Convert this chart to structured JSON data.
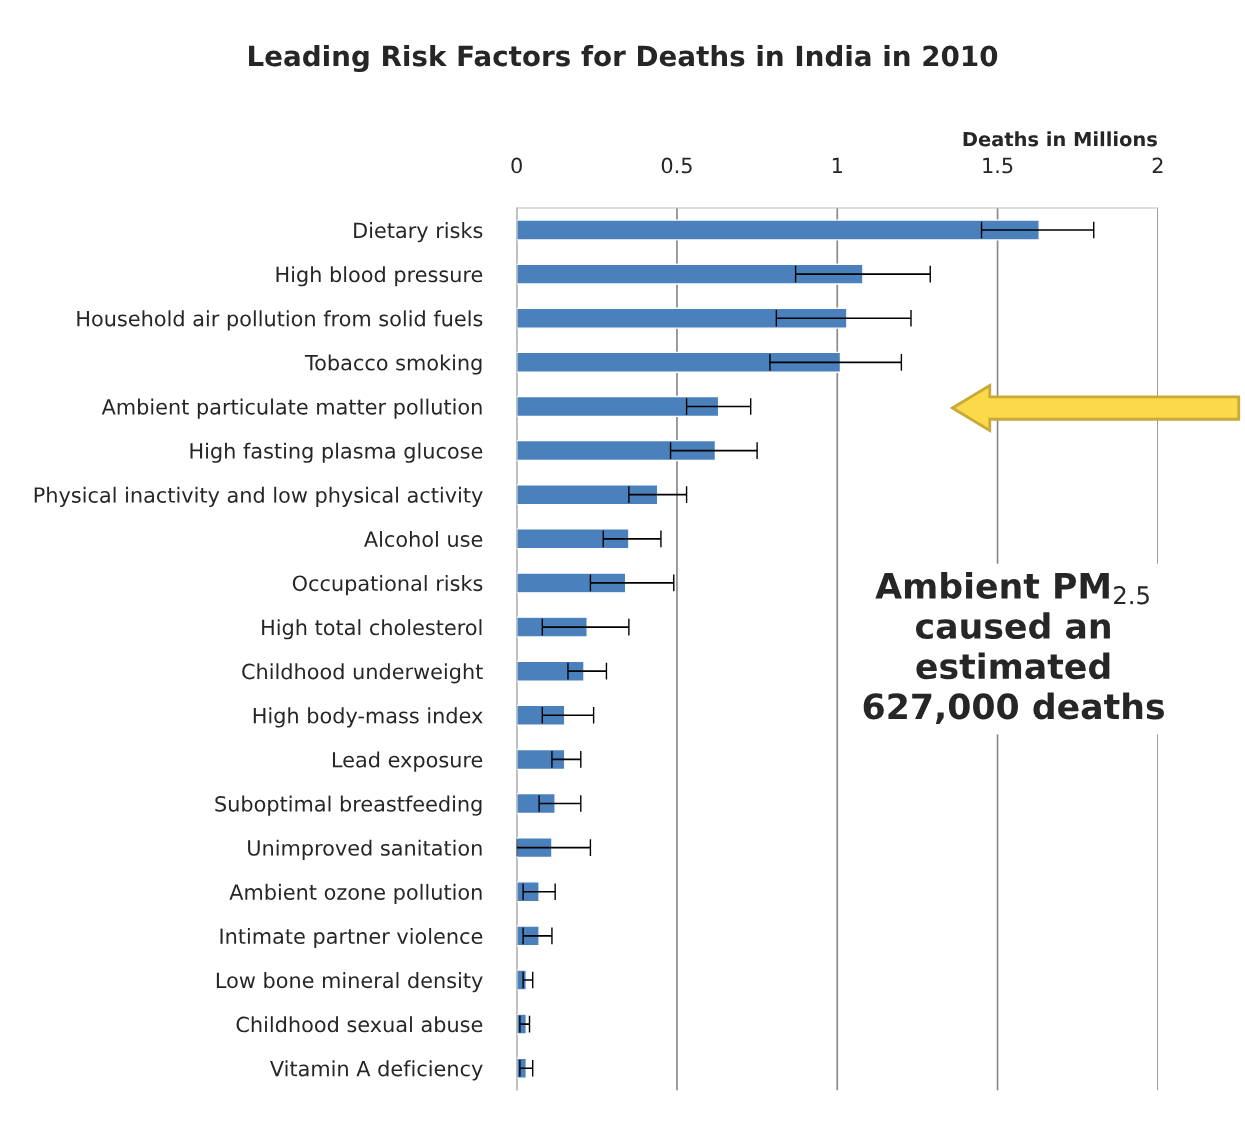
{
  "chart_data": {
    "type": "bar",
    "orientation": "horizontal",
    "title": "Leading Risk Factors for Deaths in India in 2010",
    "xlabel": "Deaths in Millions",
    "categories": [
      "Dietary risks",
      "High blood pressure",
      "Household air pollution from solid fuels",
      "Tobacco smoking",
      "Ambient particulate matter pollution",
      "High fasting plasma glucose",
      "Physical inactivity and low physical activity",
      "Alcohol use",
      "Occupational risks",
      "High total cholesterol",
      "Childhood underweight",
      "High body-mass index",
      "Lead exposure",
      "Suboptimal breastfeeding",
      "Unimproved sanitation",
      "Ambient ozone pollution",
      "Intimate partner violence",
      "Low bone mineral density",
      "Childhood sexual abuse",
      "Vitamin A deficiency"
    ],
    "series": [
      {
        "color": "#4a81bd",
        "values": [
          1.63,
          1.08,
          1.03,
          1.01,
          0.63,
          0.62,
          0.44,
          0.35,
          0.34,
          0.22,
          0.21,
          0.15,
          0.15,
          0.12,
          0.11,
          0.07,
          0.07,
          0.03,
          0.03,
          0.03
        ],
        "errors": [
          [
            1.45,
            1.8
          ],
          [
            0.87,
            1.29
          ],
          [
            0.81,
            1.23
          ],
          [
            0.79,
            1.2
          ],
          [
            0.53,
            0.73
          ],
          [
            0.48,
            0.75
          ],
          [
            0.35,
            0.53
          ],
          [
            0.27,
            0.45
          ],
          [
            0.23,
            0.49
          ],
          [
            0.08,
            0.35
          ],
          [
            0.16,
            0.28
          ],
          [
            0.08,
            0.24
          ],
          [
            0.11,
            0.2
          ],
          [
            0.07,
            0.2
          ],
          [
            0.0,
            0.23
          ],
          [
            0.02,
            0.12
          ],
          [
            0.02,
            0.11
          ],
          [
            0.02,
            0.05
          ],
          [
            0.01,
            0.04
          ],
          [
            0.01,
            0.05
          ]
        ]
      }
    ],
    "xlim": [
      0,
      2
    ],
    "xticks": [
      0,
      0.5,
      1,
      1.5,
      2
    ],
    "grid": "x",
    "annotations": [
      "Ambient PM$_{2.5}$\ncaused an\nestimated\n627,000 deaths"
    ]
  }
}
